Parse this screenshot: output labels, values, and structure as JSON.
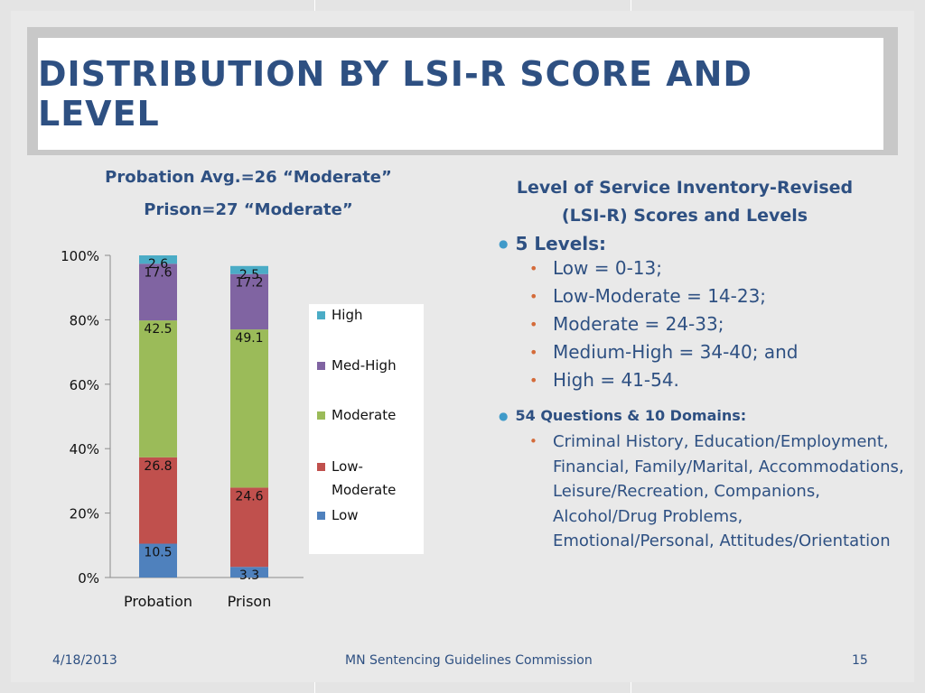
{
  "title": "DISTRIBUTION BY LSI-R SCORE AND LEVEL",
  "chart_heading": {
    "line1": "Probation Avg.=26 “Moderate”",
    "line2": "Prison=27 “Moderate”"
  },
  "right_heading": {
    "line1": "Level of Service Inventory-Revised",
    "line2": "(LSI-R) Scores and Levels"
  },
  "levels": {
    "label": "5 Levels:",
    "items": [
      "Low = 0-13;",
      "Low-Moderate = 14-23;",
      "Moderate = 24-33;",
      "Medium-High = 34-40; and",
      "High = 41-54."
    ]
  },
  "domains": {
    "label": "54 Questions & 10 Domains:",
    "text": "Criminal History, Education/Employment, Financial, Family/Marital, Accommodations, Leisure/Recreation, Companions, Alcohol/Drug Problems, Emotional/Personal, Attitudes/Orientation"
  },
  "footer": {
    "date": "4/18/2013",
    "org": "MN Sentencing Guidelines Commission",
    "page": "15"
  },
  "chart_data": {
    "type": "bar",
    "stacked": true,
    "percent": true,
    "categories": [
      "Probation",
      "Prison"
    ],
    "series": [
      {
        "name": "Low",
        "values": [
          10.5,
          3.3
        ],
        "color": "#4f81bd"
      },
      {
        "name": "Low-Moderate",
        "values": [
          26.8,
          24.6
        ],
        "color": "#c0504d"
      },
      {
        "name": "Moderate",
        "values": [
          42.5,
          49.1
        ],
        "color": "#9bbb59"
      },
      {
        "name": "Med-High",
        "values": [
          17.6,
          17.2
        ],
        "color": "#8064a2"
      },
      {
        "name": "High",
        "values": [
          2.6,
          2.5
        ],
        "color": "#4bacc6"
      }
    ],
    "ylim": [
      0,
      100
    ],
    "yticks": [
      "0%",
      "20%",
      "40%",
      "60%",
      "80%",
      "100%"
    ],
    "legend_labels": [
      "High",
      "Med-High",
      "Moderate",
      "Low-Moderate",
      "Low"
    ],
    "legend_position": "right"
  }
}
